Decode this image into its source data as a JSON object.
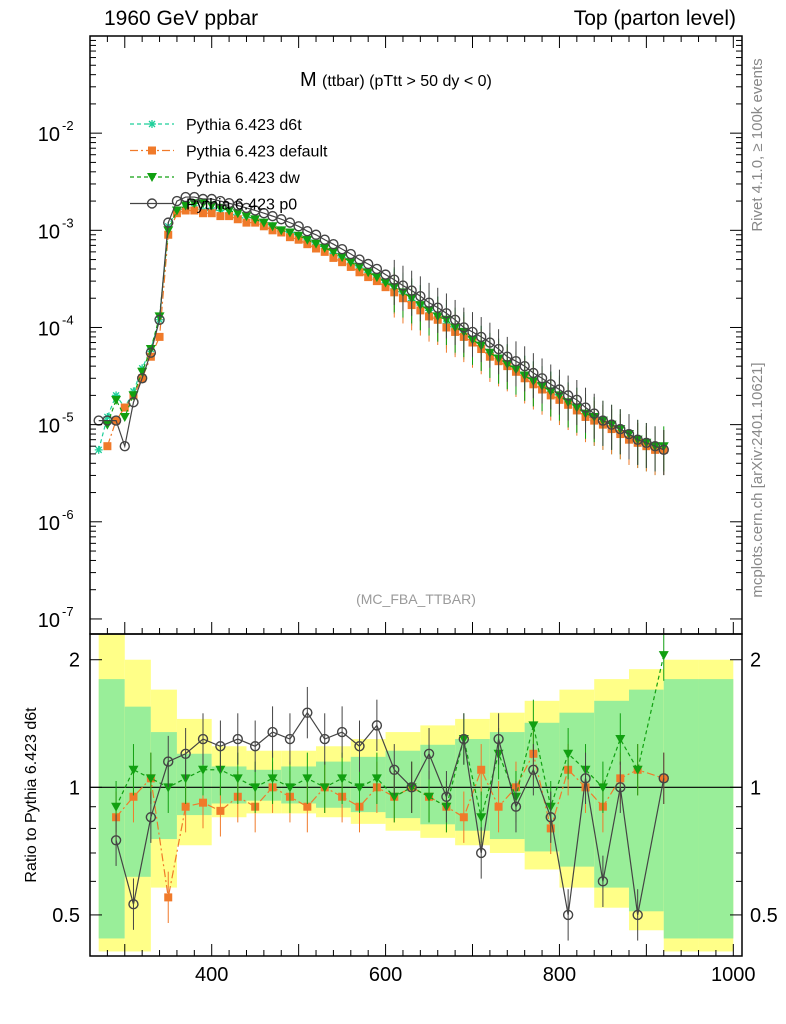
{
  "header": {
    "left": "1960 GeV ppbar",
    "right": "Top (parton level)"
  },
  "side_labels": {
    "rivet": "Rivet 4.1.0, ≥ 100k events",
    "mcplots": "mcplots.cern.ch [arXiv:2401.10621]"
  },
  "colors": {
    "d6t": "#1fcf9a",
    "default": "#f07a2a",
    "dw": "#11a011",
    "p0": "#444444",
    "band_yellow": "#ffff88",
    "band_green": "#99ee99"
  },
  "chart_data": [
    {
      "type": "line",
      "title": "M (ttbar) (pTtt > 50 dy < 0)",
      "title_main": "M",
      "title_sub": "(ttbar) (pTtt > 50 dy < 0)",
      "watermark": "(MC_FBA_TTBAR)",
      "xlabel": "",
      "ylabel": "",
      "yscale": "log",
      "xlim": [
        260,
        1010
      ],
      "ylim": [
        7e-08,
        0.1
      ],
      "y_tick_labels": [
        "10^-2",
        "10^-3",
        "10^-4",
        "10^-5",
        "10^-6",
        "10^-7"
      ],
      "legend_position": "top-left",
      "x": [
        270,
        280,
        290,
        300,
        310,
        320,
        330,
        340,
        350,
        360,
        370,
        380,
        390,
        400,
        410,
        420,
        430,
        440,
        450,
        460,
        470,
        480,
        490,
        500,
        510,
        520,
        530,
        540,
        550,
        560,
        570,
        580,
        590,
        600,
        610,
        620,
        630,
        640,
        650,
        660,
        670,
        680,
        690,
        700,
        710,
        720,
        730,
        740,
        750,
        760,
        770,
        780,
        790,
        800,
        810,
        820,
        830,
        840,
        850,
        860,
        870,
        880,
        890,
        900,
        910,
        920
      ],
      "series": [
        {
          "name": "Pythia 6.423 d6t",
          "marker": "asterisk",
          "dash": "4,3",
          "values": [
            5.5e-06,
            1.2e-05,
            2e-05,
            1.5e-05,
            2.2e-05,
            3.8e-05,
            6e-05,
            0.00012,
            0.0011,
            0.0016,
            0.0017,
            0.0017,
            0.0016,
            0.0016,
            0.0016,
            0.0015,
            0.0014,
            0.0013,
            0.0013,
            0.0012,
            0.0011,
            0.001,
            0.00095,
            0.00088,
            0.0008,
            0.00072,
            0.00065,
            0.00058,
            0.00052,
            0.00046,
            0.00041,
            0.00037,
            0.00033,
            0.00029,
            0.00025,
            0.00022,
            0.00019,
            0.00017,
            0.00015,
            0.00013,
            0.00011,
            9.5e-05,
            8.5e-05,
            7.5e-05,
            6.5e-05,
            5.5e-05,
            4.8e-05,
            4.2e-05,
            3.6e-05,
            3.2e-05,
            2.8e-05,
            2.5e-05,
            2.2e-05,
            1.9e-05,
            1.7e-05,
            1.5e-05,
            1.3e-05,
            1.1e-05,
            1e-05,
            9e-06,
            8e-06,
            7e-06,
            6.5e-06,
            6e-06,
            5.5e-06,
            5.5e-06
          ]
        },
        {
          "name": "Pythia 6.423 default",
          "marker": "square",
          "dash": "8,3,2,3",
          "values": [
            null,
            6e-06,
            1.1e-05,
            1.5e-05,
            2e-05,
            3e-05,
            5e-05,
            8e-05,
            0.0009,
            0.0015,
            0.0016,
            0.0016,
            0.0015,
            0.0015,
            0.0014,
            0.0014,
            0.0013,
            0.0012,
            0.0012,
            0.0011,
            0.001,
            0.00095,
            0.00085,
            0.0008,
            0.00072,
            0.00065,
            0.0006,
            0.00052,
            0.00047,
            0.00042,
            0.00037,
            0.00033,
            0.0003,
            0.00026,
            0.00023,
            0.0002,
            0.00017,
            0.00015,
            0.00013,
            0.00012,
            0.0001,
            9e-05,
            8e-05,
            7e-05,
            6e-05,
            5e-05,
            4.5e-05,
            4e-05,
            3.5e-05,
            3e-05,
            2.6e-05,
            2.3e-05,
            2e-05,
            1.8e-05,
            1.6e-05,
            1.4e-05,
            1.2e-05,
            1.1e-05,
            1e-05,
            9e-06,
            8e-06,
            7e-06,
            6.5e-06,
            6e-06,
            5.5e-06,
            5.5e-06
          ]
        },
        {
          "name": "Pythia 6.423 dw",
          "marker": "triangle",
          "dash": "4,3",
          "values": [
            null,
            1e-05,
            1.8e-05,
            1.2e-05,
            2e-05,
            3.5e-05,
            6e-05,
            0.00013,
            0.001,
            0.0016,
            0.0018,
            0.0019,
            0.0019,
            0.0018,
            0.0017,
            0.0016,
            0.0015,
            0.0014,
            0.0013,
            0.0012,
            0.0011,
            0.001,
            0.00095,
            0.00088,
            0.0008,
            0.00073,
            0.00066,
            0.0006,
            0.00053,
            0.00047,
            0.00042,
            0.00037,
            0.00033,
            0.00029,
            0.00026,
            0.00023,
            0.0002,
            0.00017,
            0.00015,
            0.00013,
            0.00012,
            0.0001,
            9e-05,
            7.5e-05,
            6.5e-05,
            5.5e-05,
            4.8e-05,
            4.2e-05,
            3.7e-05,
            3.2e-05,
            2.8e-05,
            2.5e-05,
            2.2e-05,
            2e-05,
            1.7e-05,
            1.5e-05,
            1.3e-05,
            1.2e-05,
            1.1e-05,
            1e-05,
            9e-06,
            8e-06,
            7e-06,
            6.5e-06,
            6e-06,
            6e-06
          ]
        },
        {
          "name": "Pythia 6.423 p0",
          "marker": "circle",
          "dash": "",
          "values": [
            1.1e-05,
            1.1e-05,
            1.1e-05,
            6e-06,
            1.7e-05,
            3e-05,
            5.5e-05,
            0.00012,
            0.0012,
            0.002,
            0.0022,
            0.0022,
            0.0021,
            0.0021,
            0.002,
            0.0019,
            0.0018,
            0.0017,
            0.0016,
            0.0015,
            0.0014,
            0.0013,
            0.0012,
            0.0011,
            0.00098,
            0.0009,
            0.0008,
            0.00072,
            0.00064,
            0.00057,
            0.0005,
            0.00045,
            0.0004,
            0.00035,
            0.00031,
            0.00027,
            0.00024,
            0.00021,
            0.00018,
            0.00016,
            0.00014,
            0.00012,
            0.0001,
            9e-05,
            8e-05,
            7e-05,
            6e-05,
            5e-05,
            4.5e-05,
            4e-05,
            3.4e-05,
            3e-05,
            2.6e-05,
            2.3e-05,
            2e-05,
            1.8e-05,
            1.5e-05,
            1.3e-05,
            1.1e-05,
            1e-05,
            9e-06,
            8e-06,
            7e-06,
            6.5e-06,
            6e-06,
            5.5e-06
          ]
        }
      ]
    },
    {
      "type": "line",
      "title": "",
      "xlabel": "",
      "ylabel": "Ratio to Pythia 6.423 d6t",
      "xlim": [
        260,
        1010
      ],
      "ylim": [
        0.4,
        2.3
      ],
      "x_tick_labels": [
        "400",
        "600",
        "800",
        "1000"
      ],
      "y_tick_labels": [
        "2",
        "1",
        "0.5"
      ],
      "reference_line": 1,
      "band_edges": [
        270,
        300,
        330,
        360,
        400,
        440,
        480,
        520,
        560,
        600,
        640,
        680,
        720,
        760,
        800,
        840,
        880,
        920,
        960,
        1000
      ],
      "band_yellow_halfwidth": [
        1.3,
        1.0,
        0.7,
        0.45,
        0.25,
        0.22,
        0.22,
        0.25,
        0.3,
        0.35,
        0.4,
        0.45,
        0.5,
        0.6,
        0.7,
        0.8,
        0.9,
        1.0,
        1.0
      ],
      "band_green_halfwidth": [
        0.8,
        0.55,
        0.35,
        0.2,
        0.12,
        0.1,
        0.12,
        0.15,
        0.18,
        0.22,
        0.26,
        0.3,
        0.35,
        0.42,
        0.5,
        0.6,
        0.7,
        0.8,
        0.8
      ],
      "x": [
        290,
        310,
        330,
        350,
        370,
        390,
        410,
        430,
        450,
        470,
        490,
        510,
        530,
        550,
        570,
        590,
        610,
        630,
        650,
        670,
        690,
        710,
        730,
        750,
        770,
        790,
        810,
        830,
        850,
        870,
        890,
        920
      ],
      "series": [
        {
          "name": "Pythia 6.423 default",
          "marker": "square",
          "dash": "8,3,2,3",
          "values": [
            0.85,
            0.95,
            1.05,
            0.55,
            0.9,
            0.92,
            0.88,
            0.95,
            0.9,
            1.0,
            0.95,
            0.9,
            1.0,
            0.95,
            0.9,
            1.0,
            0.95,
            1.0,
            0.95,
            0.9,
            0.85,
            1.1,
            0.9,
            1.0,
            1.2,
            0.8,
            1.1,
            1.0,
            0.9,
            1.05,
            1.1,
            1.05
          ]
        },
        {
          "name": "Pythia 6.423 dw",
          "marker": "triangle",
          "dash": "4,3",
          "values": [
            0.9,
            1.1,
            1.05,
            1.0,
            1.05,
            1.1,
            1.1,
            1.05,
            1.0,
            1.05,
            1.0,
            1.05,
            1.0,
            1.05,
            1.0,
            1.05,
            0.95,
            1.0,
            0.95,
            0.9,
            1.3,
            0.85,
            1.2,
            0.95,
            1.4,
            0.9,
            1.2,
            1.1,
            1.0,
            1.3,
            1.1,
            2.05
          ]
        },
        {
          "name": "Pythia 6.423 p0",
          "marker": "circle",
          "dash": "",
          "values": [
            0.75,
            0.53,
            0.85,
            1.15,
            1.2,
            1.3,
            1.25,
            1.3,
            1.25,
            1.35,
            1.3,
            1.5,
            1.3,
            1.35,
            1.25,
            1.4,
            1.1,
            1.0,
            1.2,
            0.95,
            1.3,
            0.7,
            1.3,
            0.9,
            1.1,
            0.85,
            0.5,
            1.05,
            0.6,
            1.0,
            0.5,
            1.05
          ]
        }
      ]
    }
  ]
}
